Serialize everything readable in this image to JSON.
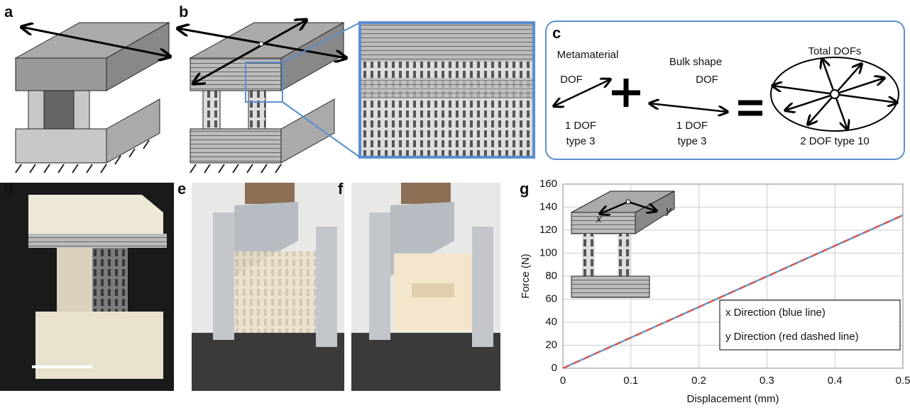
{
  "labels": [
    "a",
    "b",
    "c",
    "d",
    "e",
    "f",
    "g"
  ],
  "panel_c": {
    "metamaterial": [
      "Metamaterial",
      "DOF"
    ],
    "metamaterial_count": [
      "1 DOF",
      "type 3"
    ],
    "bulk": [
      "Bulk shape",
      "DOF"
    ],
    "bulk_count": [
      "1 DOF",
      "type 3"
    ],
    "total": "Total DOFs",
    "total_count": "2 DOF type 10"
  },
  "chart_data": {
    "type": "line",
    "x": [
      0,
      0.5
    ],
    "series": [
      {
        "name": "x Direction (blue line)",
        "color": "#5b9bd5",
        "values": [
          0,
          133
        ]
      },
      {
        "name": "y Direction (red dashed line)",
        "color": "#d05a55",
        "values": [
          0,
          133
        ]
      }
    ],
    "xlim": [
      0,
      0.5
    ],
    "ylim": [
      0,
      160
    ],
    "xticks": [
      0,
      0.1,
      0.2,
      0.3,
      0.4,
      0.5
    ],
    "yticks": [
      0,
      20,
      40,
      60,
      80,
      100,
      120,
      140,
      160
    ],
    "xlabel": "Displacement (mm)",
    "ylabel": "Force (N)",
    "annotations": [
      "x",
      "y"
    ],
    "grid": true,
    "legend": "lower right"
  }
}
